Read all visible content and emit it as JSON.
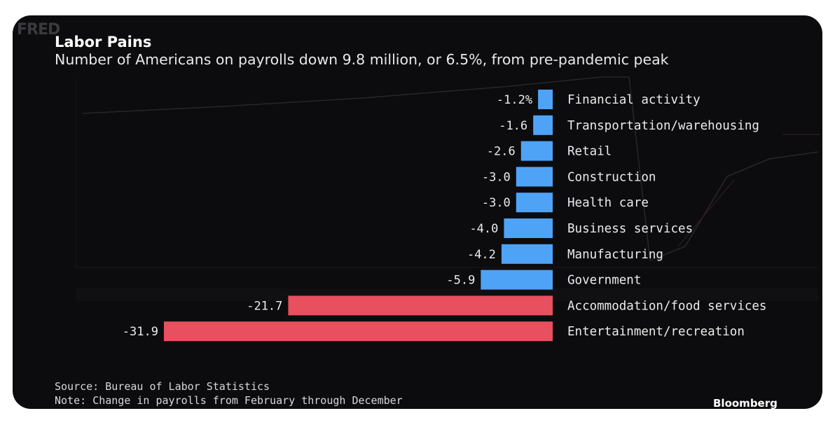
{
  "header": {
    "title": "Labor Pains",
    "subtitle": "Number of Americans on payrolls down 9.8 million, or 6.5%, from pre-pandemic peak"
  },
  "footer": {
    "source": "Source: Bureau of Labor Statistics",
    "note": "Note: Change in payrolls from February through December",
    "brand": "Bloomberg"
  },
  "watermark": {
    "logo": "FRED"
  },
  "colors": {
    "background": "#0c0c0e",
    "positive_group": "#4fa3f7",
    "highlight": "#e8505f",
    "text": "#ececec"
  },
  "chart_data": {
    "type": "bar",
    "orientation": "horizontal",
    "title": "Labor Pains",
    "subtitle": "Number of Americans on payrolls down 9.8 million, or 6.5%, from pre-pandemic peak",
    "categories": [
      "Financial activity",
      "Transportation/warehousing",
      "Retail",
      "Construction",
      "Health care",
      "Business services",
      "Manufacturing",
      "Government",
      "Accommodation/food services",
      "Entertainment/recreation"
    ],
    "values": [
      -1.2,
      -1.6,
      -2.6,
      -3.0,
      -3.0,
      -4.0,
      -4.2,
      -5.9,
      -21.7,
      -31.9
    ],
    "value_labels": [
      "-1.2%",
      "-1.6",
      "-2.6",
      "-3.0",
      "-3.0",
      "-4.0",
      "-4.2",
      "-5.9",
      "-21.7",
      "-31.9"
    ],
    "bar_colors": [
      "#4fa3f7",
      "#4fa3f7",
      "#4fa3f7",
      "#4fa3f7",
      "#4fa3f7",
      "#4fa3f7",
      "#4fa3f7",
      "#4fa3f7",
      "#e8505f",
      "#e8505f"
    ],
    "xlim": [
      -32,
      0
    ],
    "grid": false,
    "legend": "none"
  }
}
